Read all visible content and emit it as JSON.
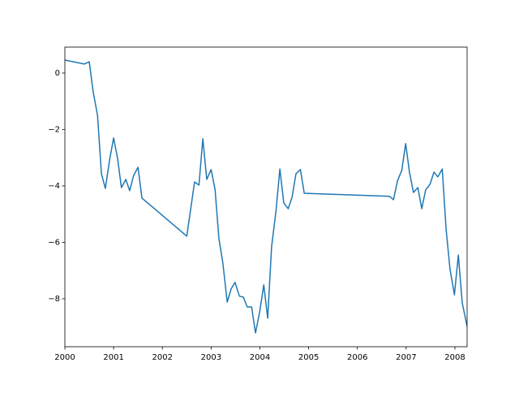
{
  "chart_data": {
    "type": "line",
    "x": [
      2000.0,
      2000.4,
      2000.5,
      2000.58,
      2000.67,
      2000.75,
      2000.83,
      2000.92,
      2001.0,
      2001.08,
      2001.16,
      2001.25,
      2001.33,
      2001.41,
      2001.5,
      2001.58,
      2002.5,
      2002.58,
      2002.66,
      2002.75,
      2002.83,
      2002.91,
      2003.0,
      2003.08,
      2003.16,
      2003.24,
      2003.33,
      2003.41,
      2003.49,
      2003.58,
      2003.66,
      2003.74,
      2003.83,
      2003.91,
      2003.99,
      2004.08,
      2004.16,
      2004.24,
      2004.33,
      2004.41,
      2004.49,
      2004.58,
      2004.66,
      2004.74,
      2004.83,
      2004.91,
      2006.66,
      2006.74,
      2006.82,
      2006.91,
      2006.99,
      2007.07,
      2007.15,
      2007.24,
      2007.32,
      2007.4,
      2007.49,
      2007.57,
      2007.65,
      2007.74,
      2007.82,
      2007.9,
      2007.99,
      2008.07,
      2008.15,
      2008.25
    ],
    "series": [
      {
        "color": "#1f77b4",
        "values": [
          0.46,
          0.32,
          0.4,
          -0.66,
          -1.5,
          -3.57,
          -4.09,
          -3.05,
          -2.3,
          -3.02,
          -4.06,
          -3.77,
          -4.17,
          -3.63,
          -3.34,
          -4.43,
          -5.78,
          -4.83,
          -3.86,
          -3.97,
          -2.33,
          -3.77,
          -3.42,
          -4.12,
          -5.87,
          -6.73,
          -8.12,
          -7.65,
          -7.42,
          -7.91,
          -7.94,
          -8.29,
          -8.29,
          -9.21,
          -8.52,
          -7.51,
          -8.69,
          -6.16,
          -4.89,
          -3.4,
          -4.6,
          -4.81,
          -4.4,
          -3.57,
          -3.42,
          -4.26,
          -4.37,
          -4.49,
          -3.83,
          -3.45,
          -2.5,
          -3.54,
          -4.23,
          -4.06,
          -4.81,
          -4.14,
          -3.94,
          -3.51,
          -3.68,
          -3.4,
          -5.55,
          -6.96,
          -7.86,
          -6.45,
          -8.14,
          -8.98
        ]
      }
    ],
    "xlim": [
      2000,
      2008.25
    ],
    "xticks": [
      2000,
      2001,
      2002,
      2003,
      2004,
      2005,
      2006,
      2007,
      2008
    ],
    "ylim": [
      -9.7,
      0.92
    ],
    "yticks": [
      {
        "value": 0,
        "label": "0"
      },
      {
        "value": -2,
        "label": "−2"
      },
      {
        "value": -4,
        "label": "−4"
      },
      {
        "value": -6,
        "label": "−6"
      },
      {
        "value": -8,
        "label": "−8"
      }
    ],
    "grid": false
  }
}
